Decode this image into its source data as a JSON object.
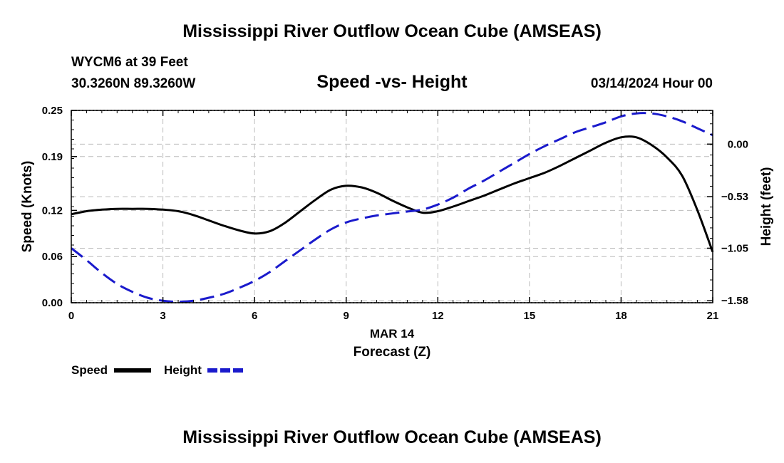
{
  "page": {
    "title_top": "Mississippi River Outflow Ocean Cube (AMSEAS)",
    "title_bottom": "Mississippi River Outflow Ocean Cube (AMSEAS)",
    "station_line": "WYCM6 at 39 Feet",
    "coords_line": "30.3260N  89.3260W",
    "subtitle": "Speed -vs- Height",
    "datetime": "03/14/2024 Hour 00"
  },
  "chart_data": {
    "type": "line",
    "title": "Speed -vs- Height",
    "xlabel_date": "MAR 14",
    "xlabel": "Forecast (Z)",
    "ylabel": "Speed (Knots)",
    "y2label": "Height (feet)",
    "xlim": [
      0,
      21
    ],
    "x_ticks": [
      "0",
      "3",
      "6",
      "9",
      "12",
      "15",
      "18",
      "21"
    ],
    "ylim": [
      0,
      0.25
    ],
    "y_ticks": [
      "0.00",
      "0.06",
      "0.12",
      "0.19",
      "0.25"
    ],
    "y2lim": [
      -1.6,
      0.34
    ],
    "y2_ticks": [
      "0.00",
      "-0.53",
      "-1.05",
      "-1.58"
    ],
    "legend": [
      {
        "label": "Speed",
        "color": "#000000",
        "style": "solid"
      },
      {
        "label": "Height",
        "color": "#1a1acc",
        "style": "dashed"
      }
    ],
    "series": [
      {
        "name": "Speed",
        "axis": "left",
        "color": "#000000",
        "x": [
          0,
          0.5,
          1,
          1.5,
          2,
          2.5,
          3,
          3.5,
          4,
          4.5,
          5,
          5.5,
          6,
          6.5,
          7,
          7.5,
          8,
          8.5,
          9,
          9.5,
          10,
          10.5,
          11,
          11.5,
          12,
          12.5,
          13,
          13.5,
          14,
          14.5,
          15,
          15.5,
          16,
          16.5,
          17,
          17.5,
          18,
          18.5,
          19,
          19.5,
          20,
          20.5,
          21
        ],
        "values": [
          0.115,
          0.119,
          0.121,
          0.122,
          0.122,
          0.122,
          0.121,
          0.119,
          0.114,
          0.107,
          0.1,
          0.094,
          0.09,
          0.093,
          0.104,
          0.119,
          0.134,
          0.147,
          0.152,
          0.15,
          0.143,
          0.133,
          0.124,
          0.117,
          0.119,
          0.125,
          0.132,
          0.139,
          0.147,
          0.155,
          0.162,
          0.169,
          0.178,
          0.188,
          0.198,
          0.208,
          0.215,
          0.215,
          0.205,
          0.189,
          0.165,
          0.12,
          0.066
        ]
      },
      {
        "name": "Height",
        "axis": "right",
        "color": "#1a1acc",
        "x": [
          0,
          0.5,
          1,
          1.5,
          2,
          2.5,
          3,
          3.5,
          4,
          4.5,
          5,
          5.5,
          6,
          6.5,
          7,
          7.5,
          8,
          8.5,
          9,
          9.5,
          10,
          10.5,
          11,
          11.5,
          12,
          12.5,
          13,
          13.5,
          14,
          14.5,
          15,
          15.5,
          16,
          16.5,
          17,
          17.5,
          18,
          18.5,
          19,
          19.5,
          20,
          20.5,
          21
        ],
        "values": [
          -1.05,
          -1.17,
          -1.3,
          -1.41,
          -1.49,
          -1.55,
          -1.58,
          -1.59,
          -1.58,
          -1.55,
          -1.51,
          -1.45,
          -1.38,
          -1.29,
          -1.18,
          -1.07,
          -0.96,
          -0.86,
          -0.79,
          -0.75,
          -0.72,
          -0.7,
          -0.68,
          -0.66,
          -0.61,
          -0.54,
          -0.45,
          -0.37,
          -0.28,
          -0.19,
          -0.1,
          -0.02,
          0.05,
          0.12,
          0.17,
          0.22,
          0.28,
          0.31,
          0.31,
          0.28,
          0.23,
          0.16,
          0.09
        ]
      }
    ]
  }
}
